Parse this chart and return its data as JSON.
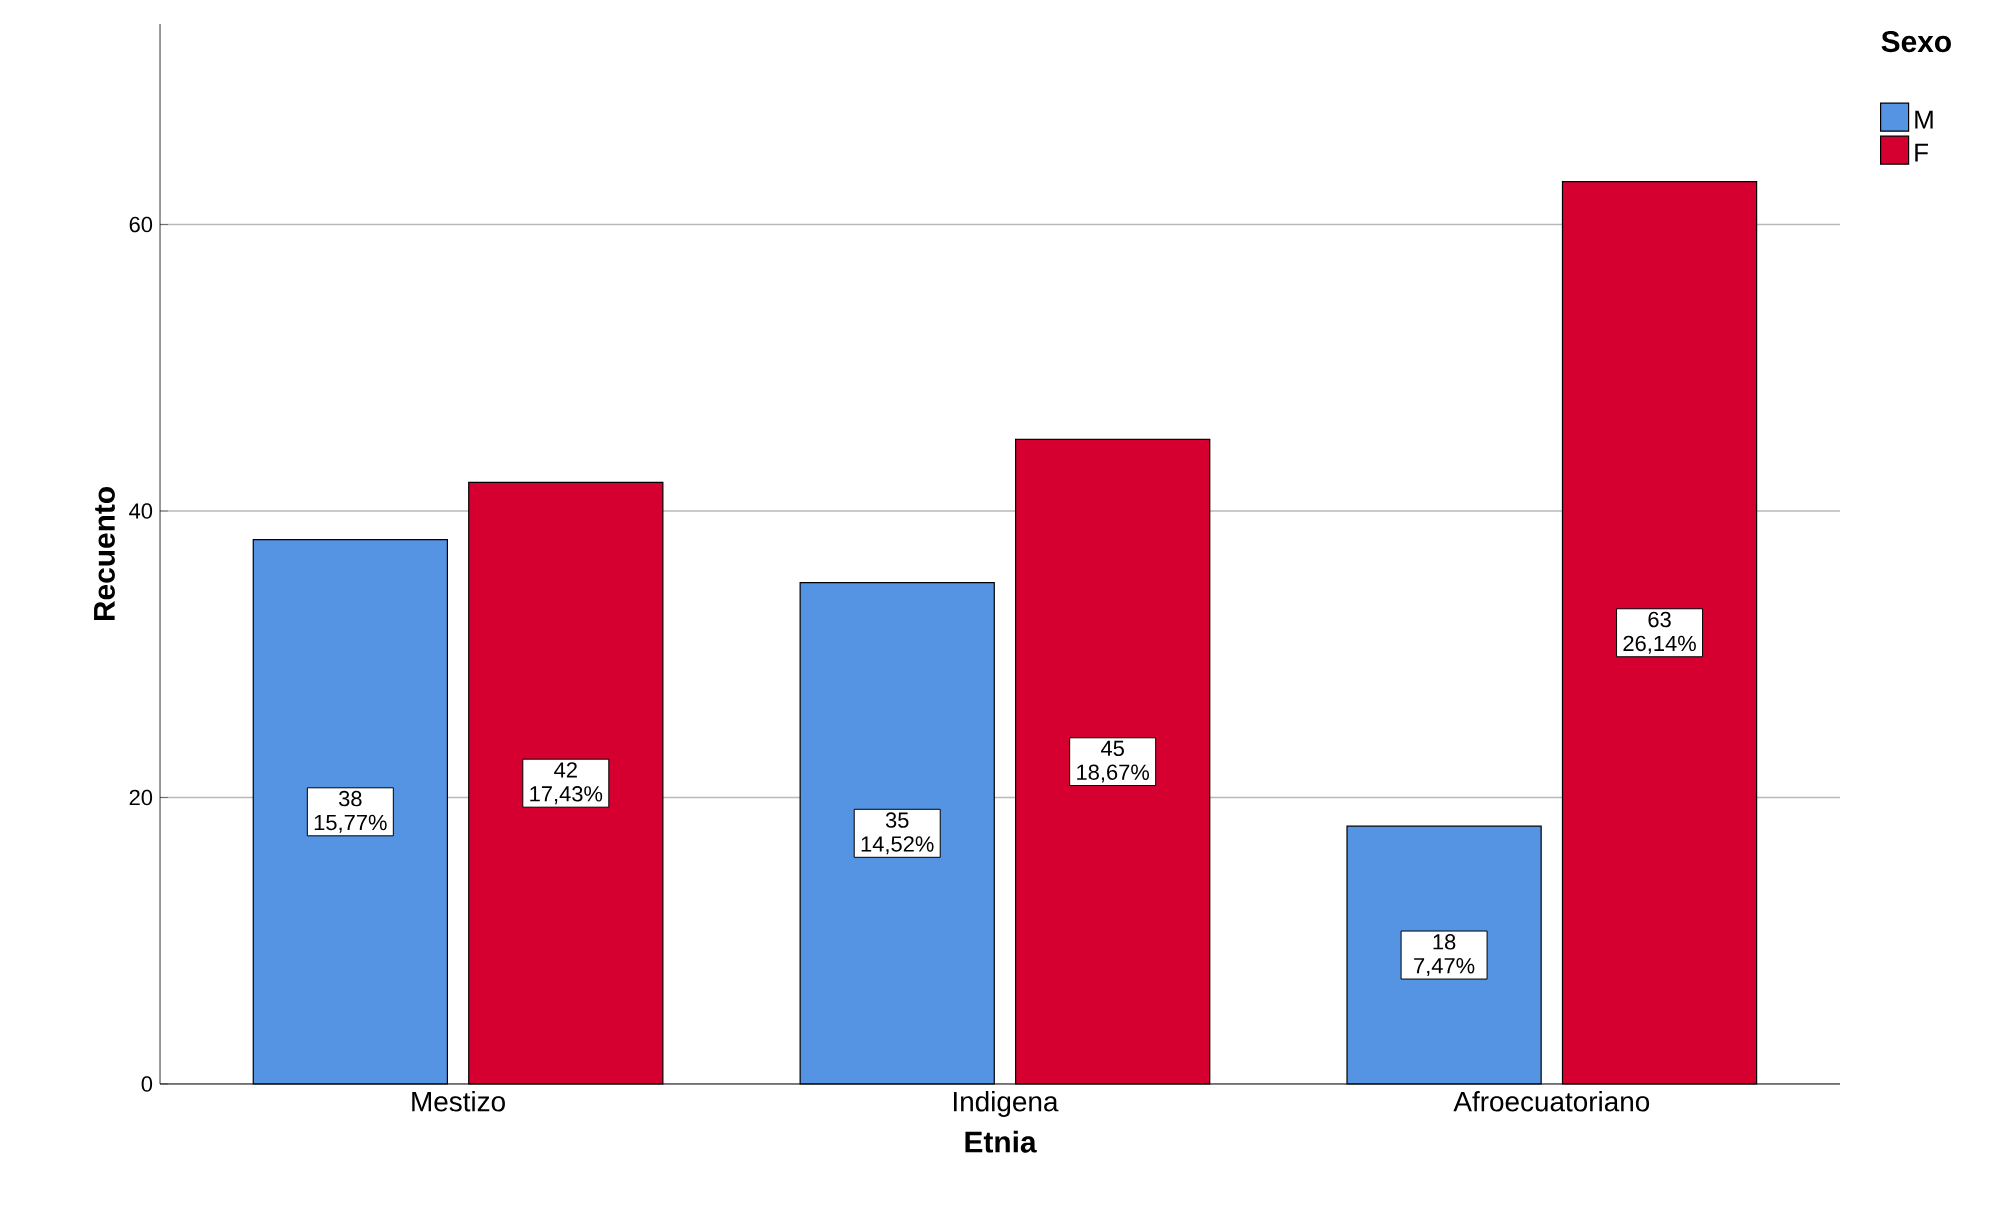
{
  "chart_data": {
    "type": "bar",
    "xlabel": "Etnia",
    "ylabel": "Recuento",
    "legend_title": "Sexo",
    "legend": "top right",
    "grid": "y",
    "categories": [
      "Mestizo",
      "Indigena",
      "Afroecuatoriano"
    ],
    "ylim": [
      0,
      74
    ],
    "yticks": [
      0,
      20,
      40,
      60
    ],
    "series": [
      {
        "name": "M",
        "color": "#5593e3",
        "values": [
          38,
          35,
          18
        ],
        "value_labels": [
          "38 15,77%",
          "35 14,52%",
          "18 7,47%"
        ]
      },
      {
        "name": "F",
        "color": "#d5002f",
        "values": [
          42,
          45,
          63
        ],
        "value_labels": [
          "42 17,43%",
          "45 18,67%",
          "63 26,14%"
        ]
      }
    ]
  }
}
